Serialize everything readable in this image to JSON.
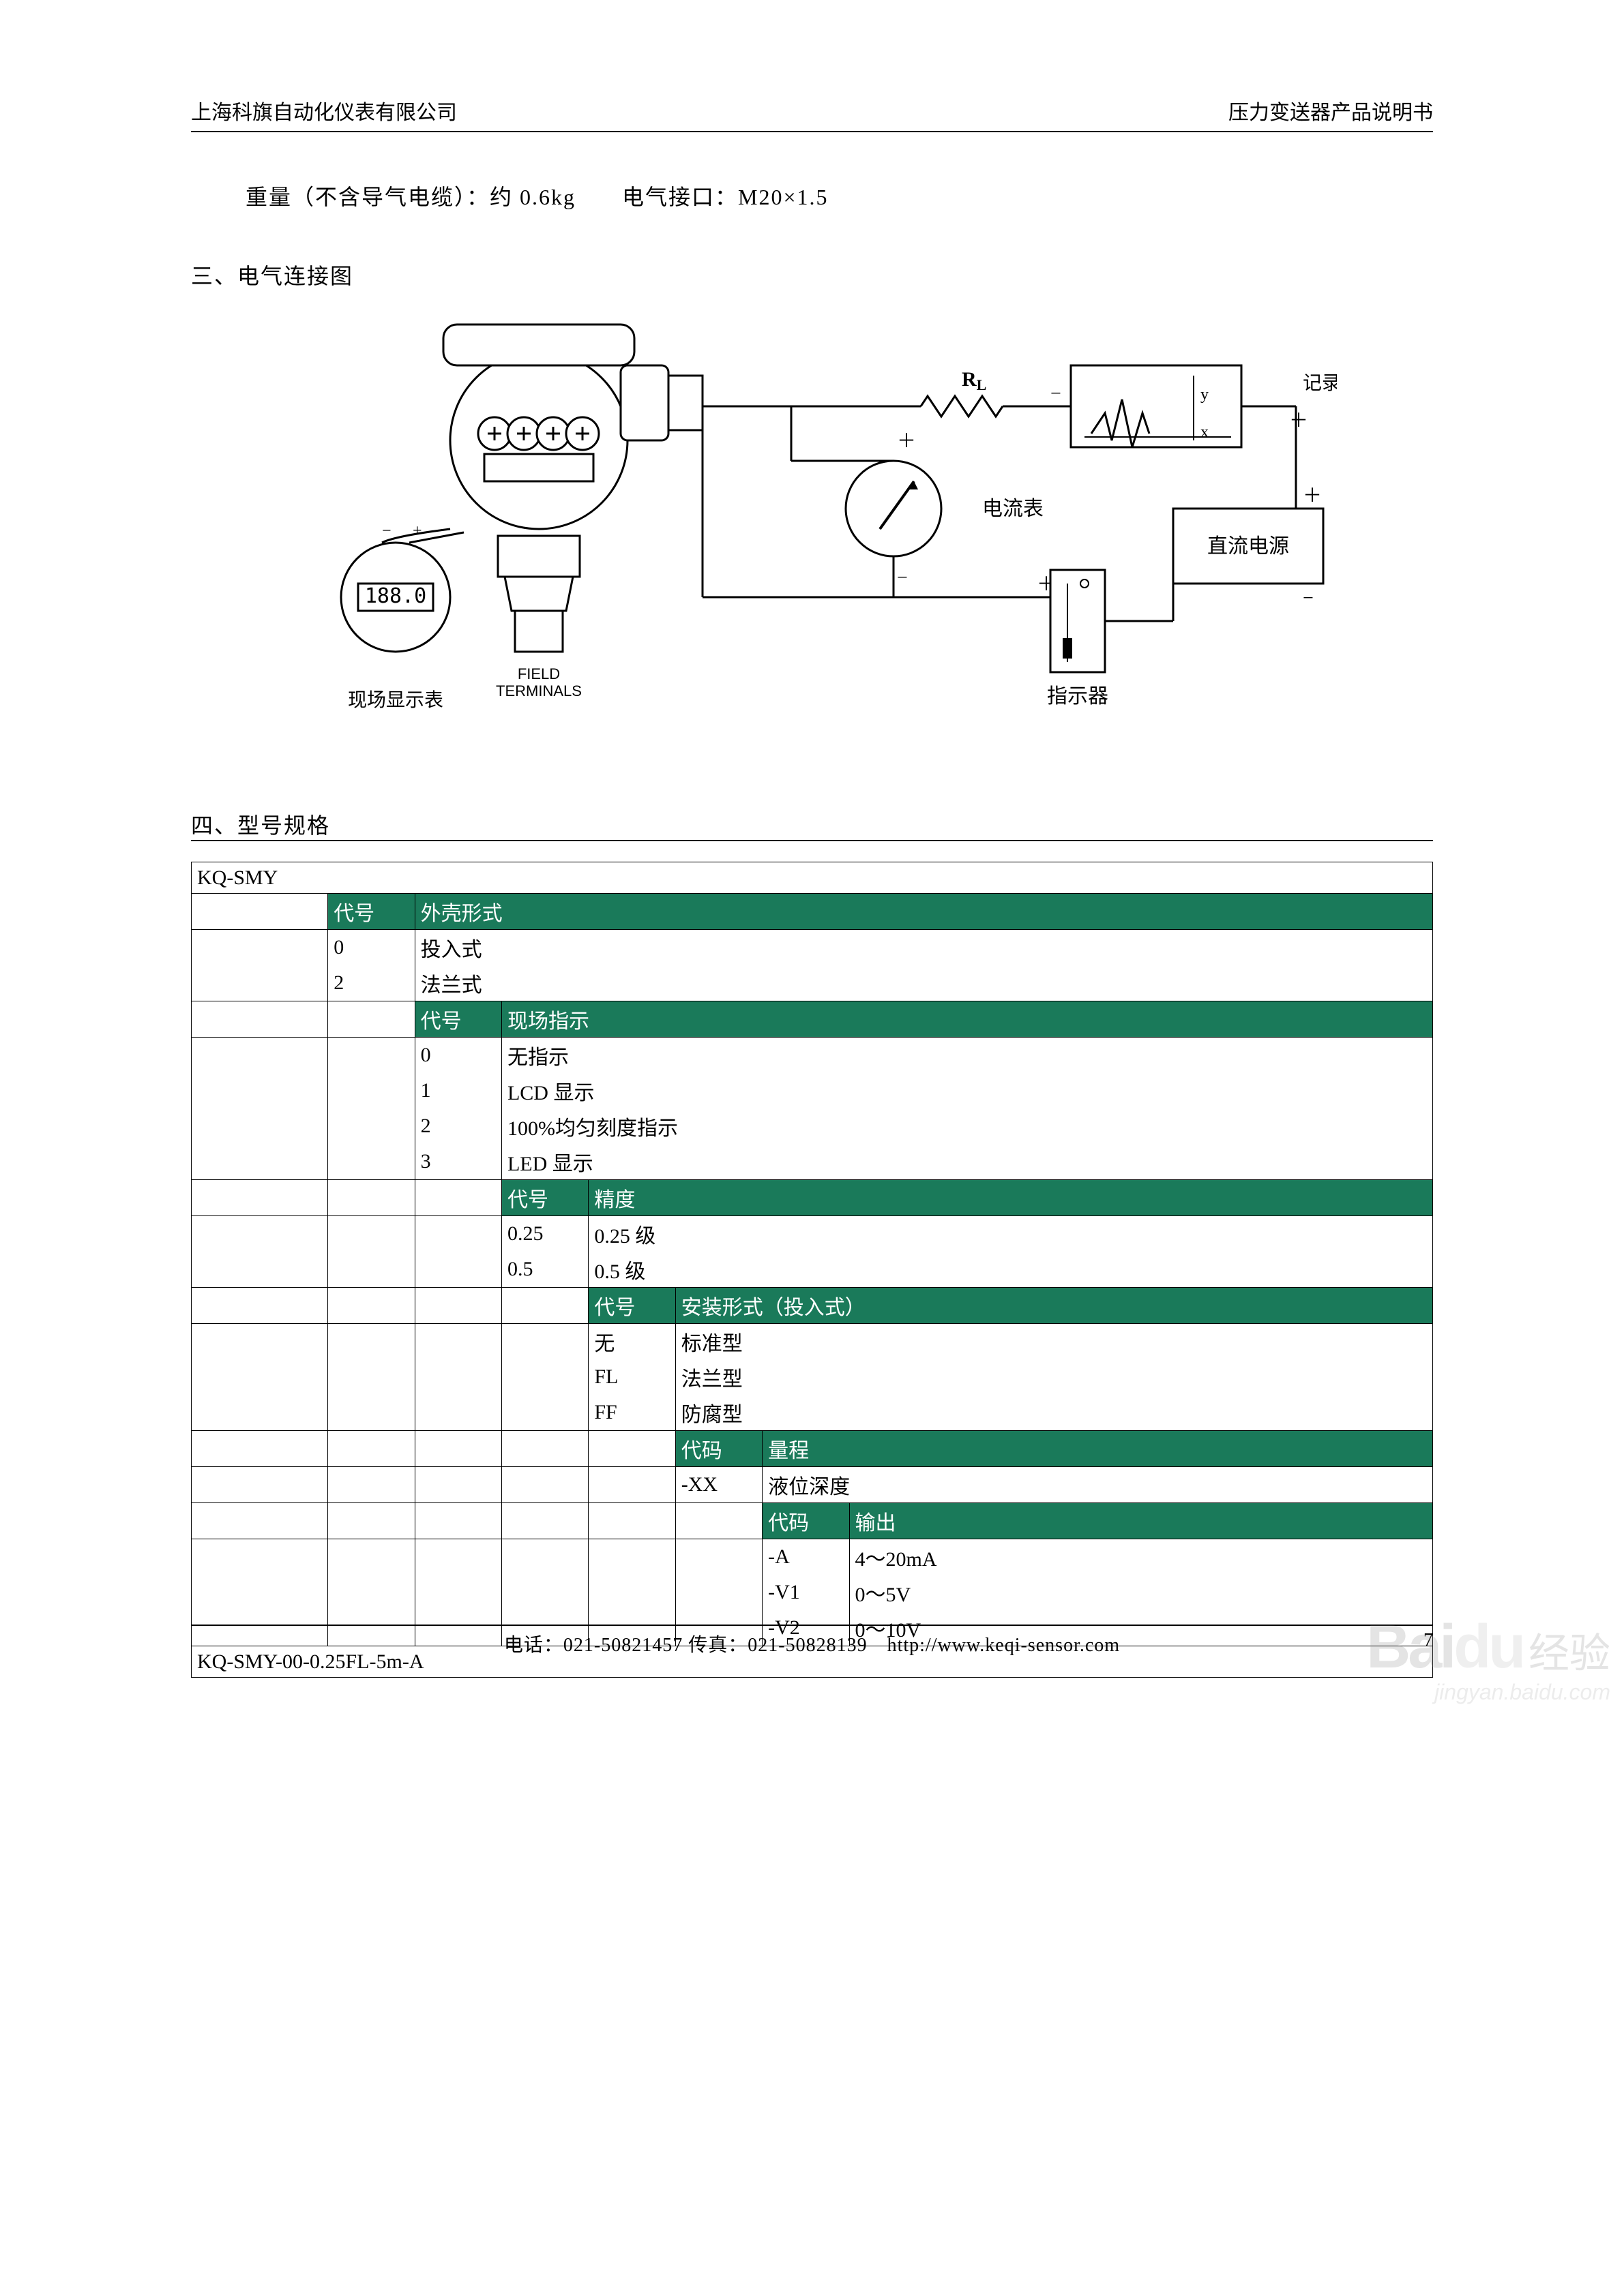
{
  "header": {
    "left": "上海科旗自动化仪表有限公司",
    "right": "压力变送器产品说明书"
  },
  "spec_line": "重量（不含导气电缆）：约 0.6kg　　电气接口：M20×1.5",
  "section3_title": "三、电气连接图",
  "section4_title": "四、型号规格",
  "diagram": {
    "device_label": "FIELD\nTERMINALS",
    "display_value": "188.0",
    "display_label": "现场显示表",
    "resistor_label": "R",
    "resistor_sub": "L",
    "recorder_label": "记录仪",
    "ammeter_label": "电流表",
    "power_label": "直流电源",
    "indicator_label": "指示器",
    "y_axis": "y",
    "x_axis": "x",
    "plus": "＋",
    "minus": "－"
  },
  "table": {
    "header_bg": "#1a7a5a",
    "model_base": "KQ-SMY",
    "example": "KQ-SMY-00-0.25FL-5m-A",
    "groups": [
      {
        "code_label": "代号",
        "title": "外壳形式",
        "rows": [
          {
            "code": "0",
            "desc": "投入式"
          },
          {
            "code": "2",
            "desc": "法兰式"
          }
        ]
      },
      {
        "code_label": "代号",
        "title": "现场指示",
        "rows": [
          {
            "code": "0",
            "desc": "无指示"
          },
          {
            "code": "1",
            "desc": "LCD 显示"
          },
          {
            "code": "2",
            "desc": "100%均匀刻度指示"
          },
          {
            "code": "3",
            "desc": "LED 显示"
          }
        ]
      },
      {
        "code_label": "代号",
        "title": "精度",
        "rows": [
          {
            "code": "0.25",
            "desc": "0.25 级"
          },
          {
            "code": "0.5",
            "desc": "0.5 级"
          }
        ]
      },
      {
        "code_label": "代号",
        "title": "安装形式（投入式）",
        "rows": [
          {
            "code": "无",
            "desc": "标准型"
          },
          {
            "code": "FL",
            "desc": "法兰型"
          },
          {
            "code": "FF",
            "desc": "防腐型"
          }
        ]
      },
      {
        "code_label": "代码",
        "title": "量程",
        "rows": [
          {
            "code": "-XX",
            "desc": "液位深度"
          }
        ]
      },
      {
        "code_label": "代码",
        "title": "输出",
        "rows": [
          {
            "code": "-A",
            "desc": "4～20mA"
          },
          {
            "code": "-V1",
            "desc": "0～5V"
          },
          {
            "code": "-V2",
            "desc": "0～10V"
          }
        ]
      }
    ]
  },
  "footer": {
    "text": "电话：021-50821457  传真：021-50828139　http://www.keqi-sensor.com",
    "page": "7"
  },
  "watermark": {
    "logo": "Bai",
    "logo2": "du",
    "jy": "经验",
    "url": "jingyan.baidu.com"
  }
}
